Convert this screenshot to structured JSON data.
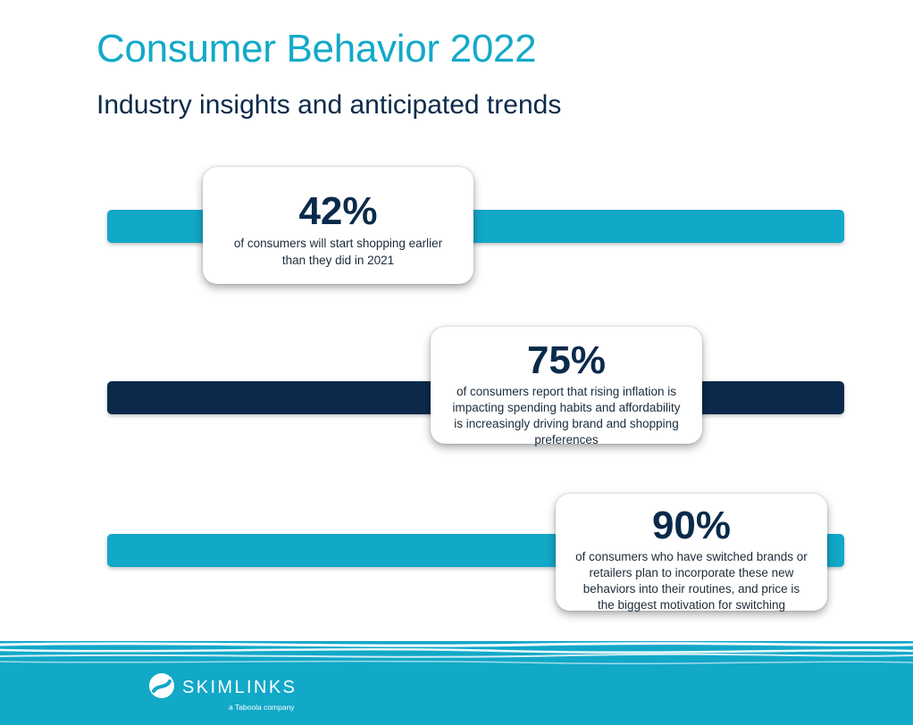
{
  "header": {
    "title": "Consumer Behavior 2022",
    "subtitle": "Industry insights and anticipated trends"
  },
  "stats": [
    {
      "value": "42%",
      "description": "of consumers will start shopping earlier than they did in 2021",
      "bar_color": "#12a8c8"
    },
    {
      "value": "75%",
      "description": "of consumers report that rising inflation is impacting spending habits and affordability is increasingly driving brand and shopping preferences",
      "bar_color": "#0b2a4a"
    },
    {
      "value": "90%",
      "description": "of consumers who have switched brands or retailers plan to incorporate these new behaviors into their routines, and price is the biggest motivation for switching",
      "bar_color": "#12a8c8"
    }
  ],
  "footer": {
    "brand": "SKIMLINKS",
    "tagline": "a Taboola company"
  },
  "colors": {
    "accent": "#12a8c8",
    "navy": "#0b2a4a"
  }
}
